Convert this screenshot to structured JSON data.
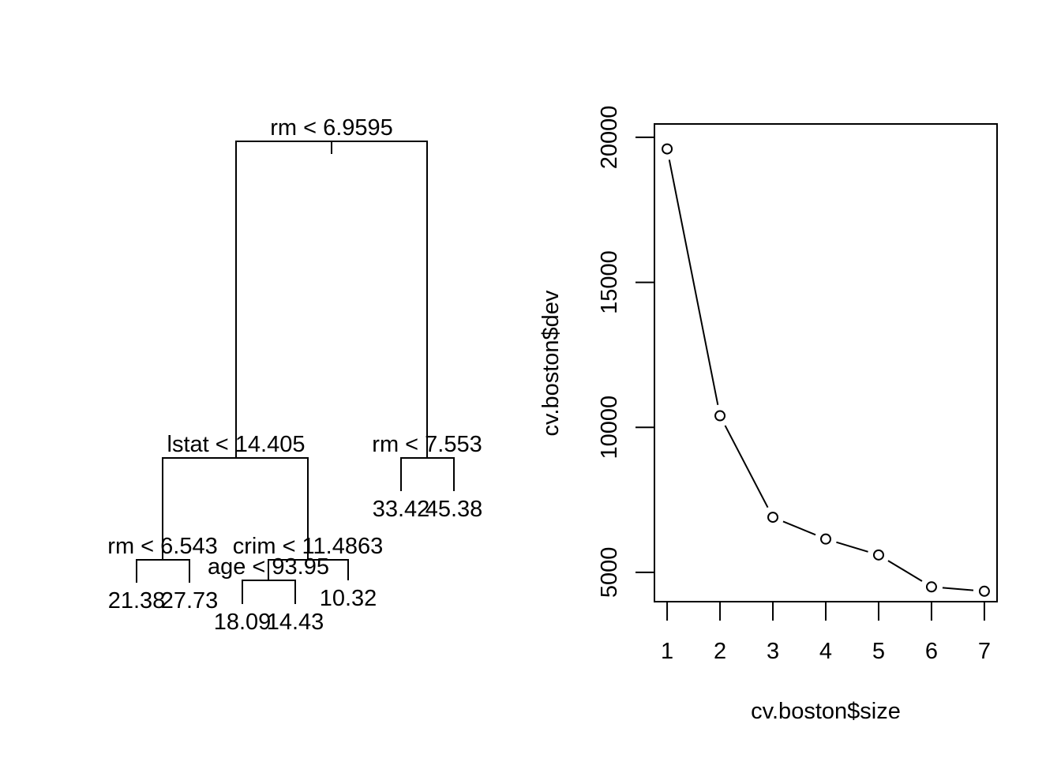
{
  "chart_data": [
    {
      "type": "tree",
      "nodes": [
        {
          "id": "root",
          "label": "rm < 6.9595",
          "children": [
            "n_lstat",
            "n_rm2"
          ]
        },
        {
          "id": "n_lstat",
          "label": "lstat < 14.405",
          "children": [
            "n_rm3",
            "n_crim"
          ]
        },
        {
          "id": "n_rm2",
          "label": "rm < 7.553",
          "children": [
            "leaf_3342",
            "leaf_4538"
          ]
        },
        {
          "id": "n_rm3",
          "label": "rm < 6.543",
          "children": [
            "leaf_2138",
            "leaf_2773"
          ]
        },
        {
          "id": "n_crim",
          "label": "crim < 11.4863",
          "children": [
            "n_age",
            "leaf_1032"
          ]
        },
        {
          "id": "n_age",
          "label": "age < 93.95",
          "children": [
            "leaf_1809",
            "leaf_1443"
          ]
        },
        {
          "id": "leaf_3342",
          "label": "33.42"
        },
        {
          "id": "leaf_4538",
          "label": "45.38"
        },
        {
          "id": "leaf_2138",
          "label": "21.38"
        },
        {
          "id": "leaf_2773",
          "label": "27.73"
        },
        {
          "id": "leaf_1809",
          "label": "18.09"
        },
        {
          "id": "leaf_1443",
          "label": "14.43"
        },
        {
          "id": "leaf_1032",
          "label": "10.32"
        }
      ]
    },
    {
      "type": "line",
      "xlabel": "cv.boston$size",
      "ylabel": "cv.boston$dev",
      "x": [
        1,
        2,
        3,
        4,
        5,
        6,
        7
      ],
      "y": [
        19600,
        10400,
        6900,
        6150,
        5600,
        4500,
        4350
      ],
      "xticks": [
        "1",
        "2",
        "3",
        "4",
        "5",
        "6",
        "7"
      ],
      "yticks": [
        "5000",
        "10000",
        "15000",
        "20000"
      ],
      "xlim": [
        0.76,
        7.24
      ],
      "ylim": [
        3990,
        20460
      ],
      "markers": "open-circle",
      "grid": false
    }
  ]
}
